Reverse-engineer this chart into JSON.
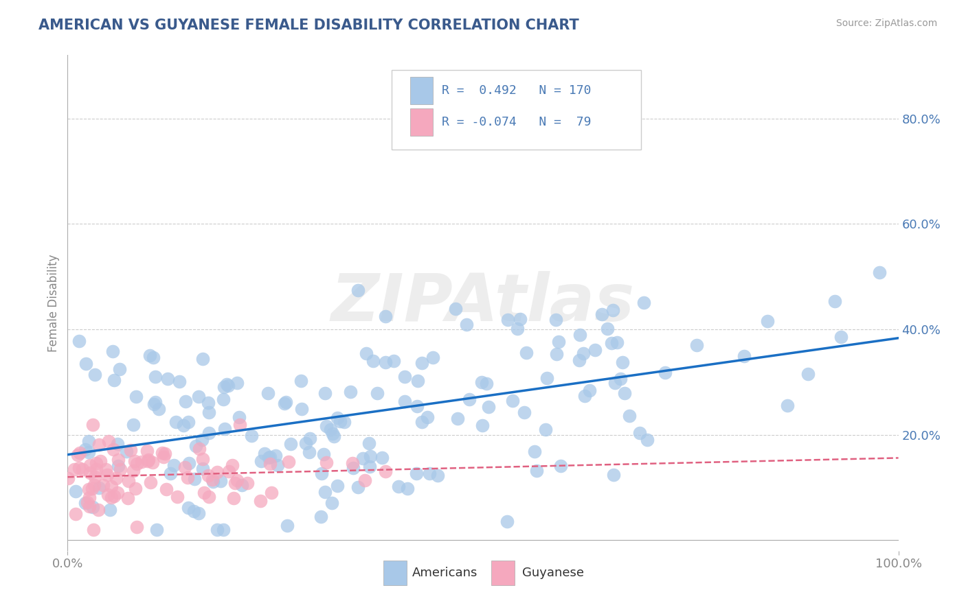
{
  "title": "AMERICAN VS GUYANESE FEMALE DISABILITY CORRELATION CHART",
  "source": "Source: ZipAtlas.com",
  "ylabel": "Female Disability",
  "xlabel": "",
  "xlim": [
    0.0,
    1.0
  ],
  "ylim": [
    -0.02,
    0.92
  ],
  "ytick_positions": [
    0.0,
    0.2,
    0.4,
    0.6,
    0.8
  ],
  "ytick_labels": [
    "",
    "20.0%",
    "40.0%",
    "60.0%",
    "80.0%"
  ],
  "xtick_positions": [
    0.0,
    1.0
  ],
  "xtick_labels": [
    "0.0%",
    "100.0%"
  ],
  "americans_color": "#a8c8e8",
  "guyanese_color": "#f5a8be",
  "americans_line_color": "#1a6fc4",
  "guyanese_line_color": "#e06080",
  "r_american": 0.492,
  "n_american": 170,
  "r_guyanese": -0.074,
  "n_guyanese": 79,
  "title_color": "#3a5a8c",
  "label_color": "#4a7ab5",
  "tick_color": "#888888",
  "background_color": "#ffffff",
  "watermark_text": "ZIPAtlas",
  "legend_label_american": "Americans",
  "legend_label_guyanese": "Guyanese"
}
